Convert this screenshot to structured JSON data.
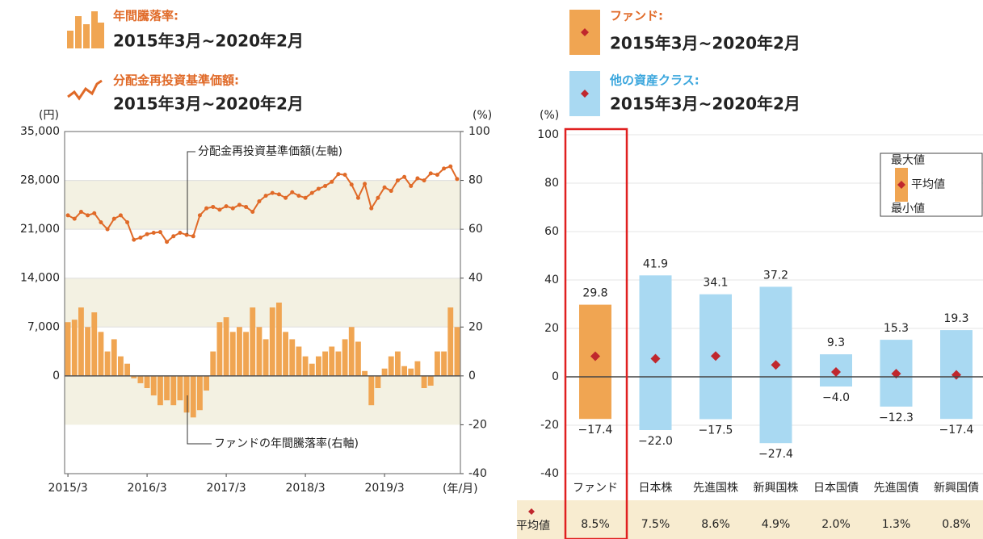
{
  "chart_data": [
    {
      "type": "bar_line",
      "y_unit": "(円)",
      "y2_unit": "(%)",
      "x_label": "(年/月)",
      "categories": [
        "2015/3",
        null,
        null,
        null,
        null,
        null,
        null,
        null,
        null,
        null,
        null,
        null,
        "2016/3",
        null,
        null,
        null,
        null,
        null,
        null,
        null,
        null,
        null,
        null,
        null,
        "2017/3",
        null,
        null,
        null,
        null,
        null,
        null,
        null,
        null,
        null,
        null,
        null,
        "2018/3",
        null,
        null,
        null,
        null,
        null,
        null,
        null,
        null,
        null,
        null,
        null,
        "2019/3",
        null,
        null,
        null,
        null,
        null,
        null,
        null,
        null,
        null,
        null,
        null
      ],
      "series": [
        {
          "name": "年間騰落率:",
          "period": "2015年3月~2020年2月",
          "annotation": "ファンドの年間騰落率(右軸)",
          "color": "#f0a552",
          "axis": "y2",
          "values": [
            22,
            23,
            28,
            20,
            26,
            18,
            10,
            15,
            8,
            5,
            -1,
            -3,
            -5,
            -8,
            -12,
            -10,
            -12,
            -10,
            -15,
            -17,
            -14,
            -6,
            10,
            22,
            24,
            18,
            20,
            18,
            28,
            20,
            15,
            28,
            30,
            18,
            15,
            12,
            8,
            5,
            8,
            10,
            12,
            10,
            15,
            20,
            14,
            2,
            -12,
            -5,
            3,
            8,
            10,
            4,
            3,
            6,
            -5,
            -4,
            10,
            10,
            28,
            20
          ]
        },
        {
          "name": "分配金再投資基準価額:",
          "period": "2015年3月~2020年2月",
          "annotation": "分配金再投資基準価額(左軸)",
          "color": "#e06a28",
          "axis": "y",
          "values": [
            23000,
            22500,
            23500,
            23000,
            23300,
            22000,
            21000,
            22500,
            23000,
            22000,
            19500,
            19800,
            20300,
            20500,
            20600,
            19200,
            20000,
            20500,
            20200,
            20000,
            23000,
            24000,
            24200,
            23800,
            24300,
            24000,
            24500,
            24200,
            23500,
            25000,
            25800,
            26200,
            26000,
            25500,
            26300,
            25800,
            25500,
            26200,
            26800,
            27200,
            27800,
            28900,
            28800,
            27400,
            25500,
            27500,
            24000,
            25500,
            27000,
            26500,
            28000,
            28500,
            27200,
            28300,
            28000,
            29000,
            28800,
            29700,
            30000,
            28200
          ]
        }
      ],
      "ylim": [
        -14000,
        35000
      ],
      "yticks": [
        0,
        {
          "value": 7000,
          "label": "7,000"
        },
        {
          "value": 14000,
          "label": "14,000"
        },
        {
          "value": 21000,
          "label": "21,000"
        },
        {
          "value": 28000,
          "label": "28,000"
        },
        {
          "value": 35000,
          "label": "35,000"
        }
      ],
      "y2lim": [
        -40,
        100
      ],
      "y2ticks": [
        -40,
        -20,
        0,
        20,
        40,
        60,
        80,
        100
      ]
    },
    {
      "type": "range",
      "y_unit": "(%)",
      "groups": [
        {
          "name": "ファンド:",
          "period": "2015年3月~2020年2月",
          "color": "#f0a552"
        },
        {
          "name": "他の資産クラス:",
          "period": "2015年3月~2020年2月",
          "color": "#a9d9f2"
        }
      ],
      "categories": [
        "ファンド",
        "日本株",
        "先進国株",
        "新興国株",
        "日本国債",
        "先進国債",
        "新興国債"
      ],
      "colors": [
        "#f0a552",
        "#a9d9f2",
        "#a9d9f2",
        "#a9d9f2",
        "#a9d9f2",
        "#a9d9f2",
        "#a9d9f2"
      ],
      "series": [
        {
          "name": "最大値",
          "values": [
            29.8,
            41.9,
            34.1,
            37.2,
            9.3,
            15.3,
            19.3
          ]
        },
        {
          "name": "最小値",
          "values": [
            -17.4,
            -22.0,
            -17.5,
            -27.4,
            -4.0,
            -12.3,
            -17.4
          ],
          "value_labels": [
            "−17.4",
            "−22.0",
            "−17.5",
            "−27.4",
            "−4.0",
            "−12.3",
            "−17.4"
          ]
        },
        {
          "name": "平均値",
          "color": "#c0272d",
          "values": [
            8.5,
            7.5,
            8.6,
            4.9,
            2.0,
            1.3,
            0.8
          ],
          "value_labels": [
            "8.5%",
            "7.5%",
            "8.6%",
            "4.9%",
            "2.0%",
            "1.3%",
            "0.8%"
          ]
        }
      ],
      "ylim": [
        -40,
        100
      ],
      "yticks": [
        -40,
        -20,
        0,
        20,
        40,
        60,
        80,
        100
      ]
    }
  ]
}
